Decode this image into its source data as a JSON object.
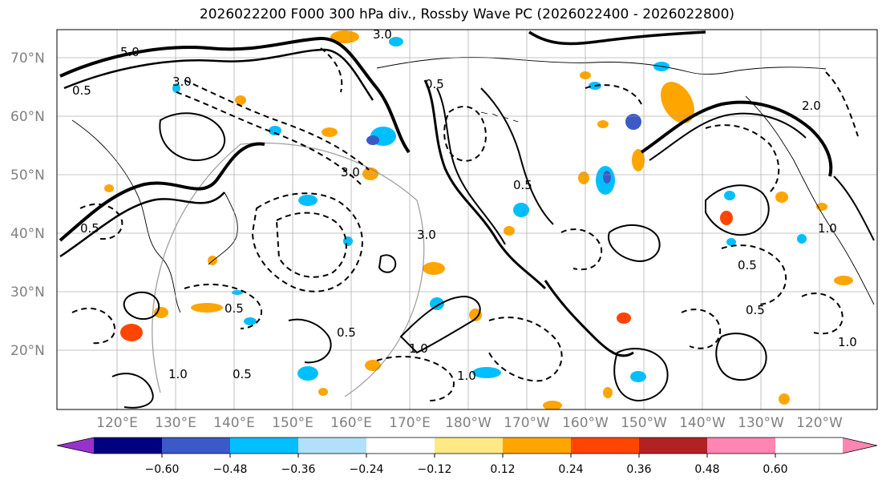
{
  "figure": {
    "title": "2026022200 F000 300 hPa div., Rossby Wave PC (2026022400 - 2026022800)"
  },
  "axes": {
    "lat_labels": [
      "70°N",
      "60°N",
      "50°N",
      "40°N",
      "30°N",
      "20°N"
    ],
    "lon_labels": [
      "120°E",
      "130°E",
      "140°E",
      "150°E",
      "160°E",
      "170°E",
      "180°W",
      "170°W",
      "160°W",
      "150°W",
      "140°W",
      "130°W",
      "120°W"
    ]
  },
  "colorbar": {
    "colors": [
      "#9932cc",
      "#000080",
      "#3a5bc7",
      "#00bfff",
      "#b0e0fa",
      "#ffffff",
      "#ffe985",
      "#ffa500",
      "#ff4500",
      "#b22222",
      "#ff85b3"
    ],
    "tick_labels": [
      "−0.60",
      "−0.48",
      "−0.36",
      "−0.24",
      "−0.12",
      "0.12",
      "0.24",
      "0.36",
      "0.48",
      "0.60"
    ]
  },
  "contour_labels": [
    "5.0",
    "3.0",
    "0.5",
    "3.0",
    "0.5",
    "1.0",
    "2.0",
    "0.5",
    "1.0",
    "3.0",
    "0.5",
    "0.5",
    "1.0",
    "0.5",
    "1.0",
    "0.5",
    "0.5",
    "1.0",
    "0.5",
    "3.0"
  ]
}
